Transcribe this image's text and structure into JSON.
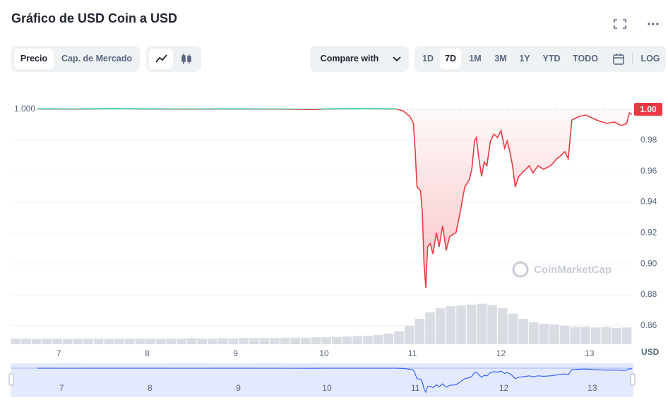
{
  "header": {
    "title": "Gráfico de USD Coin a USD"
  },
  "toolbar": {
    "tabs": [
      "Precio",
      "Cap. de Mercado"
    ],
    "compare": "Compare with",
    "ranges": [
      "1D",
      "7D",
      "1M",
      "3M",
      "1Y",
      "YTD",
      "TODO"
    ],
    "log": "LOG"
  },
  "chart_data": {
    "type": "line",
    "unit_label": "USD",
    "watermark": "CoinMarketCap",
    "xlim": [
      6.457,
      13.48
    ],
    "xticks": [
      7,
      8,
      9,
      10,
      11,
      12,
      13
    ],
    "ylim": [
      0.848,
      1.016
    ],
    "yticks": [
      0.86,
      0.88,
      {
        "value": 0.9,
        "label": "0.90"
      },
      0.92,
      0.94,
      0.96,
      0.98
    ],
    "grid": true,
    "baseline": {
      "value": 1,
      "label": "1.000"
    },
    "price_badge": {
      "value": 1,
      "label": "1.00"
    },
    "series": [
      {
        "color": "#ea3943",
        "color_above": "#16c784",
        "x": [
          6.76,
          7.2,
          7.6,
          8.0,
          8.5,
          9.0,
          9.5,
          9.9,
          10.0,
          10.4,
          10.81,
          10.89,
          10.97,
          11.01,
          11.03,
          11.05,
          11.09,
          11.11,
          11.13,
          11.15,
          11.17,
          11.2,
          11.23,
          11.27,
          11.3,
          11.34,
          11.38,
          11.42,
          11.49,
          11.54,
          11.59,
          11.64,
          11.67,
          11.7,
          11.72,
          11.75,
          11.78,
          11.81,
          11.84,
          11.88,
          11.92,
          11.96,
          12.0,
          12.04,
          12.07,
          12.1,
          12.13,
          12.16,
          12.2,
          12.24,
          12.28,
          12.32,
          12.36,
          12.42,
          12.48,
          12.56,
          12.63,
          12.68,
          12.72,
          12.76,
          12.8,
          12.88,
          12.96,
          13.04,
          13.12,
          13.2,
          13.28,
          13.36,
          13.42,
          13.45,
          13.48
        ],
        "values": [
          1.0003,
          1.0002,
          1.0004,
          1.0003,
          1.0002,
          1.0003,
          1.0002,
          0.9999,
          1.0003,
          1.0004,
          1.0003,
          0.9991,
          0.9954,
          0.9909,
          0.9726,
          0.9498,
          0.9475,
          0.9338,
          0.8995,
          0.8844,
          0.911,
          0.9132,
          0.9064,
          0.9201,
          0.911,
          0.9247,
          0.9087,
          0.9178,
          0.9201,
          0.9338,
          0.9498,
          0.9543,
          0.9612,
          0.9795,
          0.9817,
          0.968,
          0.9566,
          0.9658,
          0.9635,
          0.9795,
          0.984,
          0.9817,
          0.9863,
          0.9749,
          0.9795,
          0.9726,
          0.9635,
          0.9498,
          0.9566,
          0.9589,
          0.9612,
          0.9635,
          0.9589,
          0.9635,
          0.9612,
          0.9635,
          0.968,
          0.9703,
          0.9726,
          0.968,
          0.9931,
          0.9954,
          0.9963,
          0.9941,
          0.9922,
          0.9909,
          0.9918,
          0.9895,
          0.9909,
          0.9977,
          0.9968
        ]
      }
    ],
    "volume": {
      "ylim": [
        0,
        100
      ],
      "color": "#d9dde3",
      "values": [
        14,
        14,
        13,
        14,
        14,
        13,
        14,
        14,
        14,
        13,
        14,
        14,
        14,
        14,
        13,
        14,
        14,
        15,
        14,
        14,
        15,
        14,
        15,
        15,
        15,
        15,
        16,
        16,
        16,
        17,
        17,
        18,
        19,
        20,
        21,
        23,
        26,
        32,
        45,
        62,
        78,
        88,
        93,
        95,
        97,
        99,
        96,
        88,
        75,
        62,
        54,
        50,
        48,
        45,
        42,
        43,
        41,
        42,
        40,
        41
      ]
    }
  }
}
